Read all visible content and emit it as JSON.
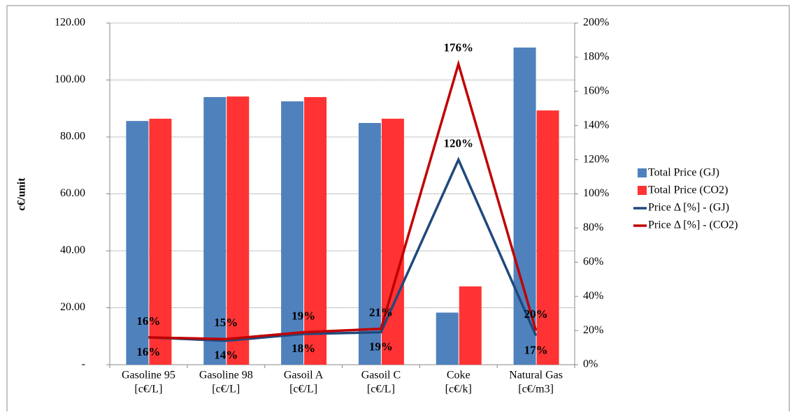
{
  "chart_data": {
    "type": "bar-line",
    "y_label": "c€/unit",
    "categories": [
      [
        "Gasoline 95",
        "[c€/L]"
      ],
      [
        "Gasoline 98",
        "[c€/L]"
      ],
      [
        "Gasoil A",
        "[c€/L]"
      ],
      [
        "Gasoil C",
        "[c€/L]"
      ],
      [
        "Coke",
        "[c€/k]"
      ],
      [
        "Natural Gas",
        "[c€/m3]"
      ]
    ],
    "series": [
      {
        "name": "Total Price (GJ)",
        "type": "bar",
        "color": "#4f81bd",
        "values": [
          85.6,
          94.0,
          92.5,
          84.9,
          18.3,
          111.4
        ]
      },
      {
        "name": "Total Price (CO2)",
        "type": "bar",
        "color": "#ff3333",
        "values": [
          86.4,
          94.2,
          94.0,
          86.4,
          27.5,
          89.3
        ]
      },
      {
        "name": "Price Δ [%] - (GJ)",
        "type": "line",
        "axis": "y2",
        "color": "#1f497d",
        "values": [
          16,
          14,
          18,
          19,
          120,
          17
        ],
        "value_labels": [
          "16%",
          "14%",
          "18%",
          "19%",
          "120%",
          "17%"
        ]
      },
      {
        "name": "Price Δ [%] - (CO2)",
        "type": "line",
        "axis": "y2",
        "color": "#c00000",
        "values": [
          16,
          15,
          19,
          21,
          176,
          20
        ],
        "value_labels": [
          "16%",
          "15%",
          "19%",
          "21%",
          "176%",
          "20%"
        ]
      }
    ],
    "ylim": [
      0,
      120
    ],
    "yticks": [
      {
        "value": 0,
        "label": "-"
      },
      {
        "value": 20,
        "label": "20.00"
      },
      {
        "value": 40,
        "label": "40.00"
      },
      {
        "value": 60,
        "label": "60.00"
      },
      {
        "value": 80,
        "label": "80.00"
      },
      {
        "value": 100,
        "label": "100.00"
      },
      {
        "value": 120,
        "label": "120.00"
      }
    ],
    "y2lim": [
      0,
      200
    ],
    "y2ticks": [
      {
        "value": 0,
        "label": "0%"
      },
      {
        "value": 20,
        "label": "20%"
      },
      {
        "value": 40,
        "label": "40%"
      },
      {
        "value": 60,
        "label": "60%"
      },
      {
        "value": 80,
        "label": "80%"
      },
      {
        "value": 100,
        "label": "100%"
      },
      {
        "value": 120,
        "label": "120%"
      },
      {
        "value": 140,
        "label": "140%"
      },
      {
        "value": 160,
        "label": "160%"
      },
      {
        "value": 180,
        "label": "180%"
      },
      {
        "value": 200,
        "label": "200%"
      }
    ],
    "grid": true,
    "legend": "right"
  }
}
